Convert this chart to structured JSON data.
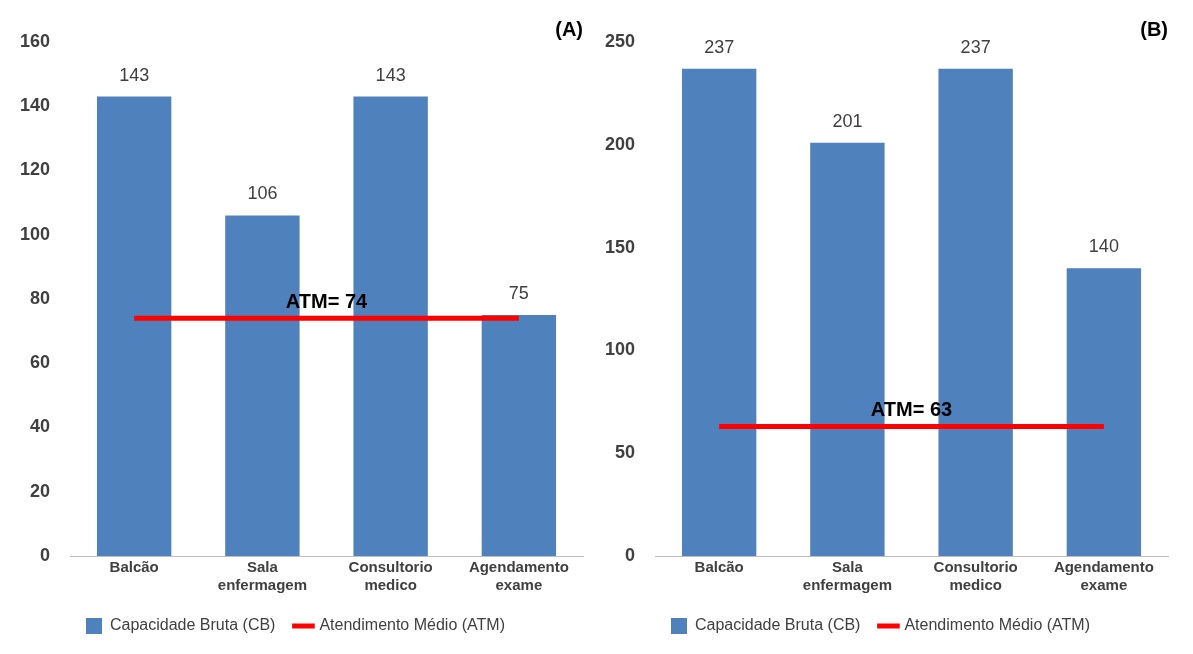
{
  "chart_data": [
    {
      "type": "bar",
      "title": "(A)",
      "categories": [
        "Balcão",
        "Sala enfermagem",
        "Consultorio medico",
        "Agendamento exame"
      ],
      "series": [
        {
          "name": "Capacidade Bruta (CB)",
          "color": "#4f81bd",
          "values": [
            143,
            106,
            143,
            75
          ],
          "value_labels": [
            "143",
            "106",
            "143",
            "75"
          ]
        },
        {
          "name": "Atendimento Médio (ATM)",
          "type": "line",
          "color": "#ff0000",
          "values": [
            74,
            74,
            74,
            74
          ]
        }
      ],
      "annotations": [
        {
          "text": "ATM= 74",
          "y": 74
        }
      ],
      "ylim": [
        0,
        160
      ],
      "yticks": [
        0,
        20,
        40,
        60,
        80,
        100,
        120,
        140,
        160
      ],
      "grid": false,
      "legend": "bottom",
      "marker": "none"
    },
    {
      "type": "bar",
      "title": "(B)",
      "categories": [
        "Balcão",
        "Sala enfermagem",
        "Consultorio medico",
        "Agendamento exame"
      ],
      "series": [
        {
          "name": "Capacidade Bruta (CB)",
          "color": "#4f81bd",
          "values": [
            237,
            201,
            237,
            140
          ],
          "value_labels": [
            "237",
            "201",
            "237",
            "140"
          ]
        },
        {
          "name": "Atendimento Médio (ATM)",
          "type": "line",
          "color": "#ff0000",
          "values": [
            63,
            63,
            63,
            63
          ]
        }
      ],
      "annotations": [
        {
          "text": "ATM= 63",
          "y": 63
        }
      ],
      "ylim": [
        0,
        250
      ],
      "yticks": [
        0,
        50,
        100,
        150,
        200,
        250
      ],
      "grid": false,
      "legend": "bottom",
      "marker": "none"
    }
  ]
}
